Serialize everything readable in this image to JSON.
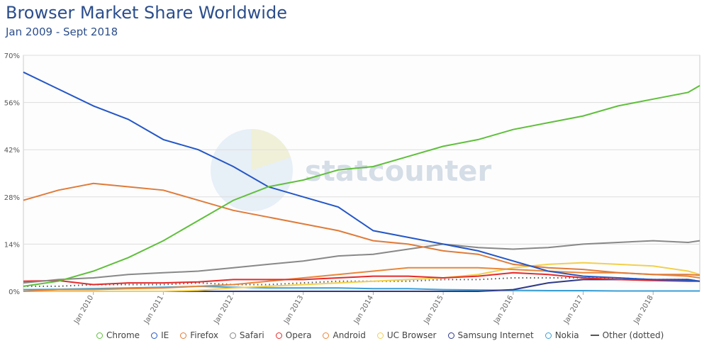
{
  "chart_data": {
    "type": "line",
    "title": "Browser Market Share Worldwide",
    "subtitle": "Jan 2009 - Sept 2018",
    "xlabel": "",
    "ylabel": "",
    "ylim": [
      0,
      70
    ],
    "yticks": [
      "0%",
      "14%",
      "28%",
      "42%",
      "56%",
      "70%"
    ],
    "xticks": [
      "Jan 2010",
      "Jan 2011",
      "Jan 2012",
      "Jan 2013",
      "Jan 2014",
      "Jan 2015",
      "Jan 2016",
      "Jan 2017",
      "Jan 2018"
    ],
    "x_months_since_jan_2009": [
      0,
      6,
      12,
      18,
      24,
      30,
      36,
      42,
      48,
      54,
      60,
      66,
      72,
      78,
      84,
      90,
      96,
      102,
      108,
      114,
      116
    ],
    "watermark": "statcounter",
    "series": [
      {
        "name": "Chrome",
        "color": "#5fbf3a",
        "values": [
          1.5,
          3,
          6,
          10,
          15,
          21,
          27,
          31,
          33,
          36,
          37,
          40,
          43,
          45,
          48,
          50,
          52,
          55,
          57,
          59,
          61
        ]
      },
      {
        "name": "IE",
        "color": "#2457c5",
        "values": [
          65,
          60,
          55,
          51,
          45,
          42,
          37,
          31,
          28,
          25,
          18,
          16,
          14,
          12,
          9,
          6,
          4.5,
          4,
          3.5,
          3.2,
          3
        ]
      },
      {
        "name": "Firefox",
        "color": "#e07b39",
        "values": [
          27,
          30,
          32,
          31,
          30,
          27,
          24,
          22,
          20,
          18,
          15,
          14,
          12,
          11,
          8,
          7,
          6.5,
          5.5,
          5,
          5,
          4.8
        ]
      },
      {
        "name": "Safari",
        "color": "#888888",
        "values": [
          2.5,
          3.5,
          4,
          5,
          5.5,
          6,
          7,
          8,
          9,
          10.5,
          11,
          12.5,
          14,
          13,
          12.5,
          13,
          14,
          14.5,
          15,
          14.5,
          15
        ]
      },
      {
        "name": "Opera",
        "color": "#e52a2a",
        "values": [
          3,
          3.2,
          2,
          2.5,
          2.5,
          2.8,
          3.5,
          3.5,
          3.5,
          4,
          4.5,
          4.5,
          4,
          4.5,
          5.5,
          5,
          4,
          3.5,
          3.2,
          3,
          3
        ]
      },
      {
        "name": "Android",
        "color": "#e8873a",
        "values": [
          0,
          0.5,
          0.5,
          0.8,
          1,
          1.5,
          2,
          3,
          4,
          5,
          6,
          7,
          7,
          7,
          6.5,
          6,
          5.5,
          5.5,
          5,
          4.5,
          4
        ]
      },
      {
        "name": "UC Browser",
        "color": "#f2d04b",
        "values": [
          0,
          0,
          0,
          0,
          0,
          0.3,
          1,
          1.5,
          2,
          2.5,
          3,
          3.5,
          4,
          5,
          7,
          8,
          8.5,
          8,
          7.5,
          6,
          5
        ]
      },
      {
        "name": "Samsung Internet",
        "color": "#2e3a87",
        "values": [
          0,
          0,
          0,
          0,
          0,
          0,
          0,
          0,
          0,
          0,
          0,
          0,
          0,
          0,
          0.5,
          2.5,
          3.5,
          3.5,
          3.5,
          3.5,
          3
        ]
      },
      {
        "name": "Nokia",
        "color": "#3a9fd6",
        "values": [
          0.5,
          0.6,
          0.8,
          1,
          1.2,
          1.5,
          1.2,
          1,
          1,
          1,
          0.8,
          0.8,
          0.5,
          0.4,
          0.3,
          0.2,
          0.2,
          0.1,
          0.1,
          0.1,
          0.1
        ]
      },
      {
        "name": "Other (dotted)",
        "color": "#555555",
        "dotted": true,
        "values": [
          1.5,
          1.5,
          2,
          2,
          2,
          2.5,
          2,
          2,
          2.5,
          3,
          3,
          3,
          3.5,
          3.5,
          4,
          4,
          4,
          4,
          3.5,
          3.5,
          3
        ]
      }
    ]
  }
}
